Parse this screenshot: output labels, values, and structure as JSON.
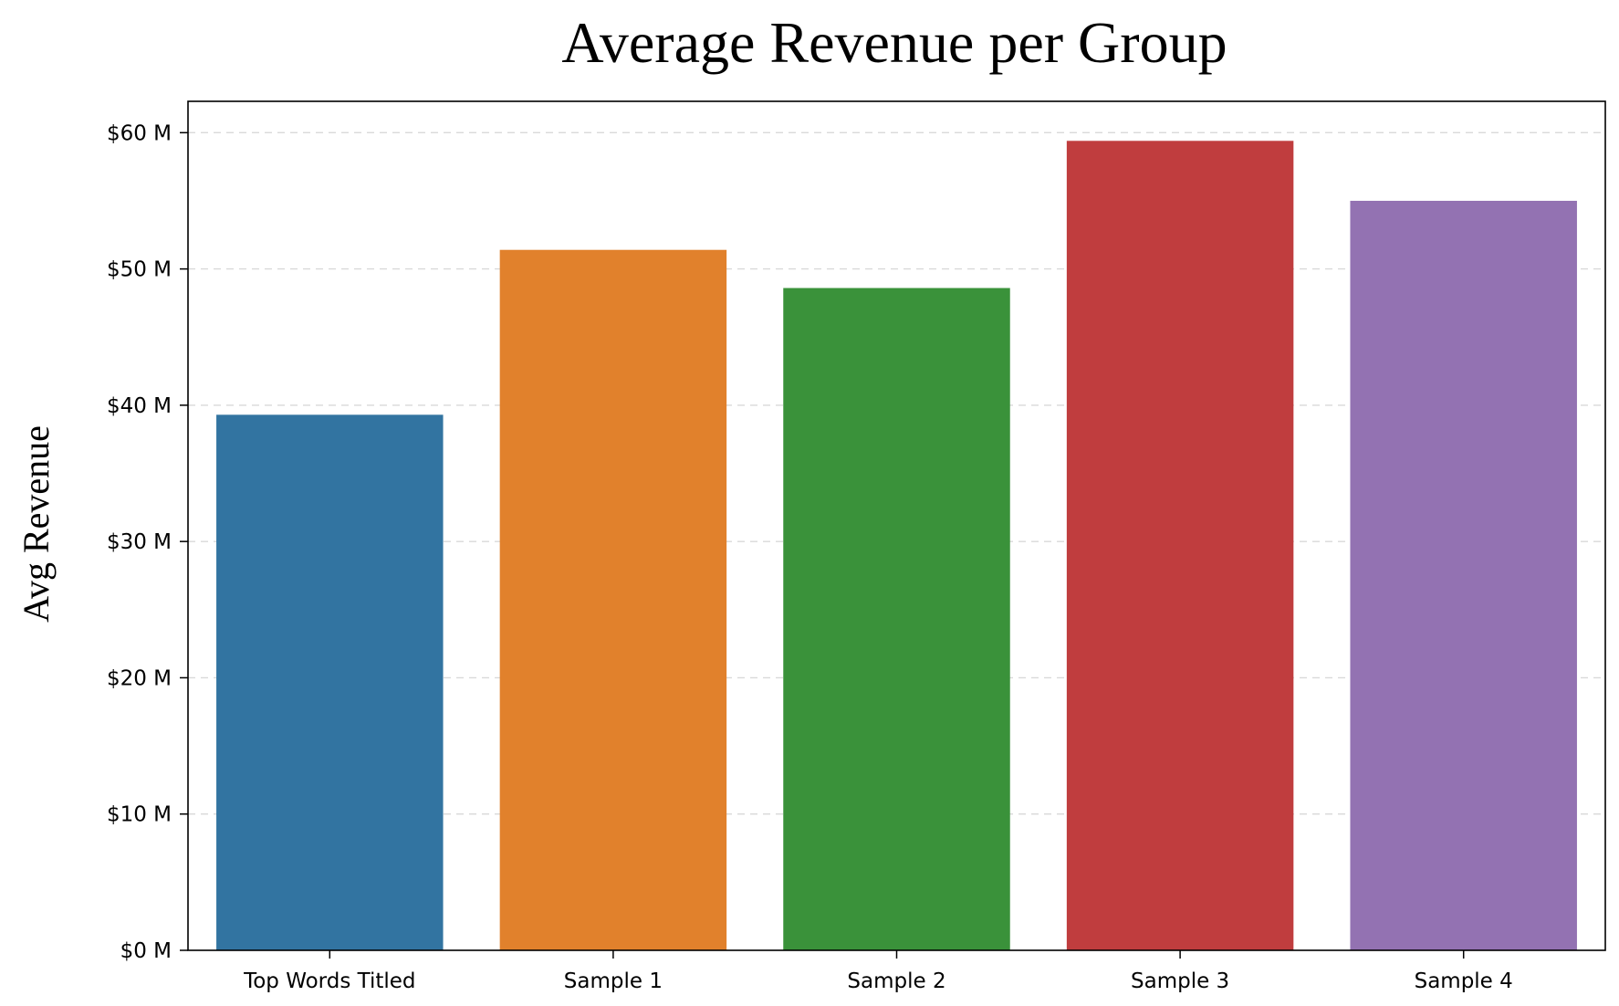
{
  "chart_data": {
    "type": "bar",
    "title": "Average Revenue per Group",
    "xlabel": "",
    "ylabel": "Avg Revenue",
    "categories": [
      "Top Words Titled",
      "Sample 1",
      "Sample 2",
      "Sample 3",
      "Sample 4"
    ],
    "values": [
      39.3,
      51.4,
      48.6,
      59.4,
      55.0
    ],
    "unit": "$ M",
    "ylim": [
      0,
      62.3
    ],
    "yticks": [
      0,
      10,
      20,
      30,
      40,
      50,
      60
    ],
    "ytick_labels": [
      "$0 M",
      "$10 M",
      "$20 M",
      "$30 M",
      "$40 M",
      "$50 M",
      "$60 M"
    ],
    "grid": "y-dashed",
    "colors": [
      "#3274a1",
      "#e1812c",
      "#3a923a",
      "#c03d3e",
      "#9372b2"
    ]
  }
}
